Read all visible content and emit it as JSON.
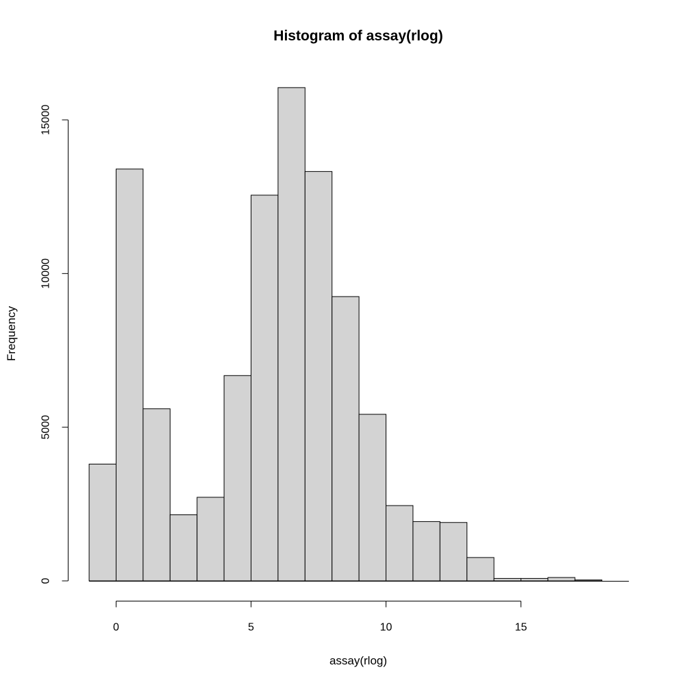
{
  "chart_data": {
    "type": "bar",
    "title": "Histogram of assay(rlog)",
    "xlabel": "assay(rlog)",
    "ylabel": "Frequency",
    "bin_edges": [
      -1,
      0,
      1,
      2,
      3,
      4,
      5,
      6,
      7,
      8,
      9,
      10,
      11,
      12,
      13,
      14,
      15,
      16,
      17,
      18,
      19
    ],
    "values": [
      3800,
      13400,
      5600,
      2150,
      2720,
      6680,
      12550,
      16050,
      13320,
      9250,
      5420,
      2450,
      1930,
      1900,
      760,
      80,
      80,
      110,
      30,
      0
    ],
    "xlim": [
      -1,
      19
    ],
    "ylim": [
      0,
      16050
    ],
    "x_ticks": [
      0,
      5,
      10,
      15
    ],
    "x_tick_labels": [
      "0",
      "5",
      "10",
      "15"
    ],
    "y_ticks": [
      0,
      5000,
      10000,
      15000
    ],
    "y_tick_labels": [
      "0",
      "5000",
      "10000",
      "15000"
    ],
    "bar_color": "#d3d3d3",
    "edge_color": "#000000",
    "grid": false,
    "legend": "none"
  }
}
